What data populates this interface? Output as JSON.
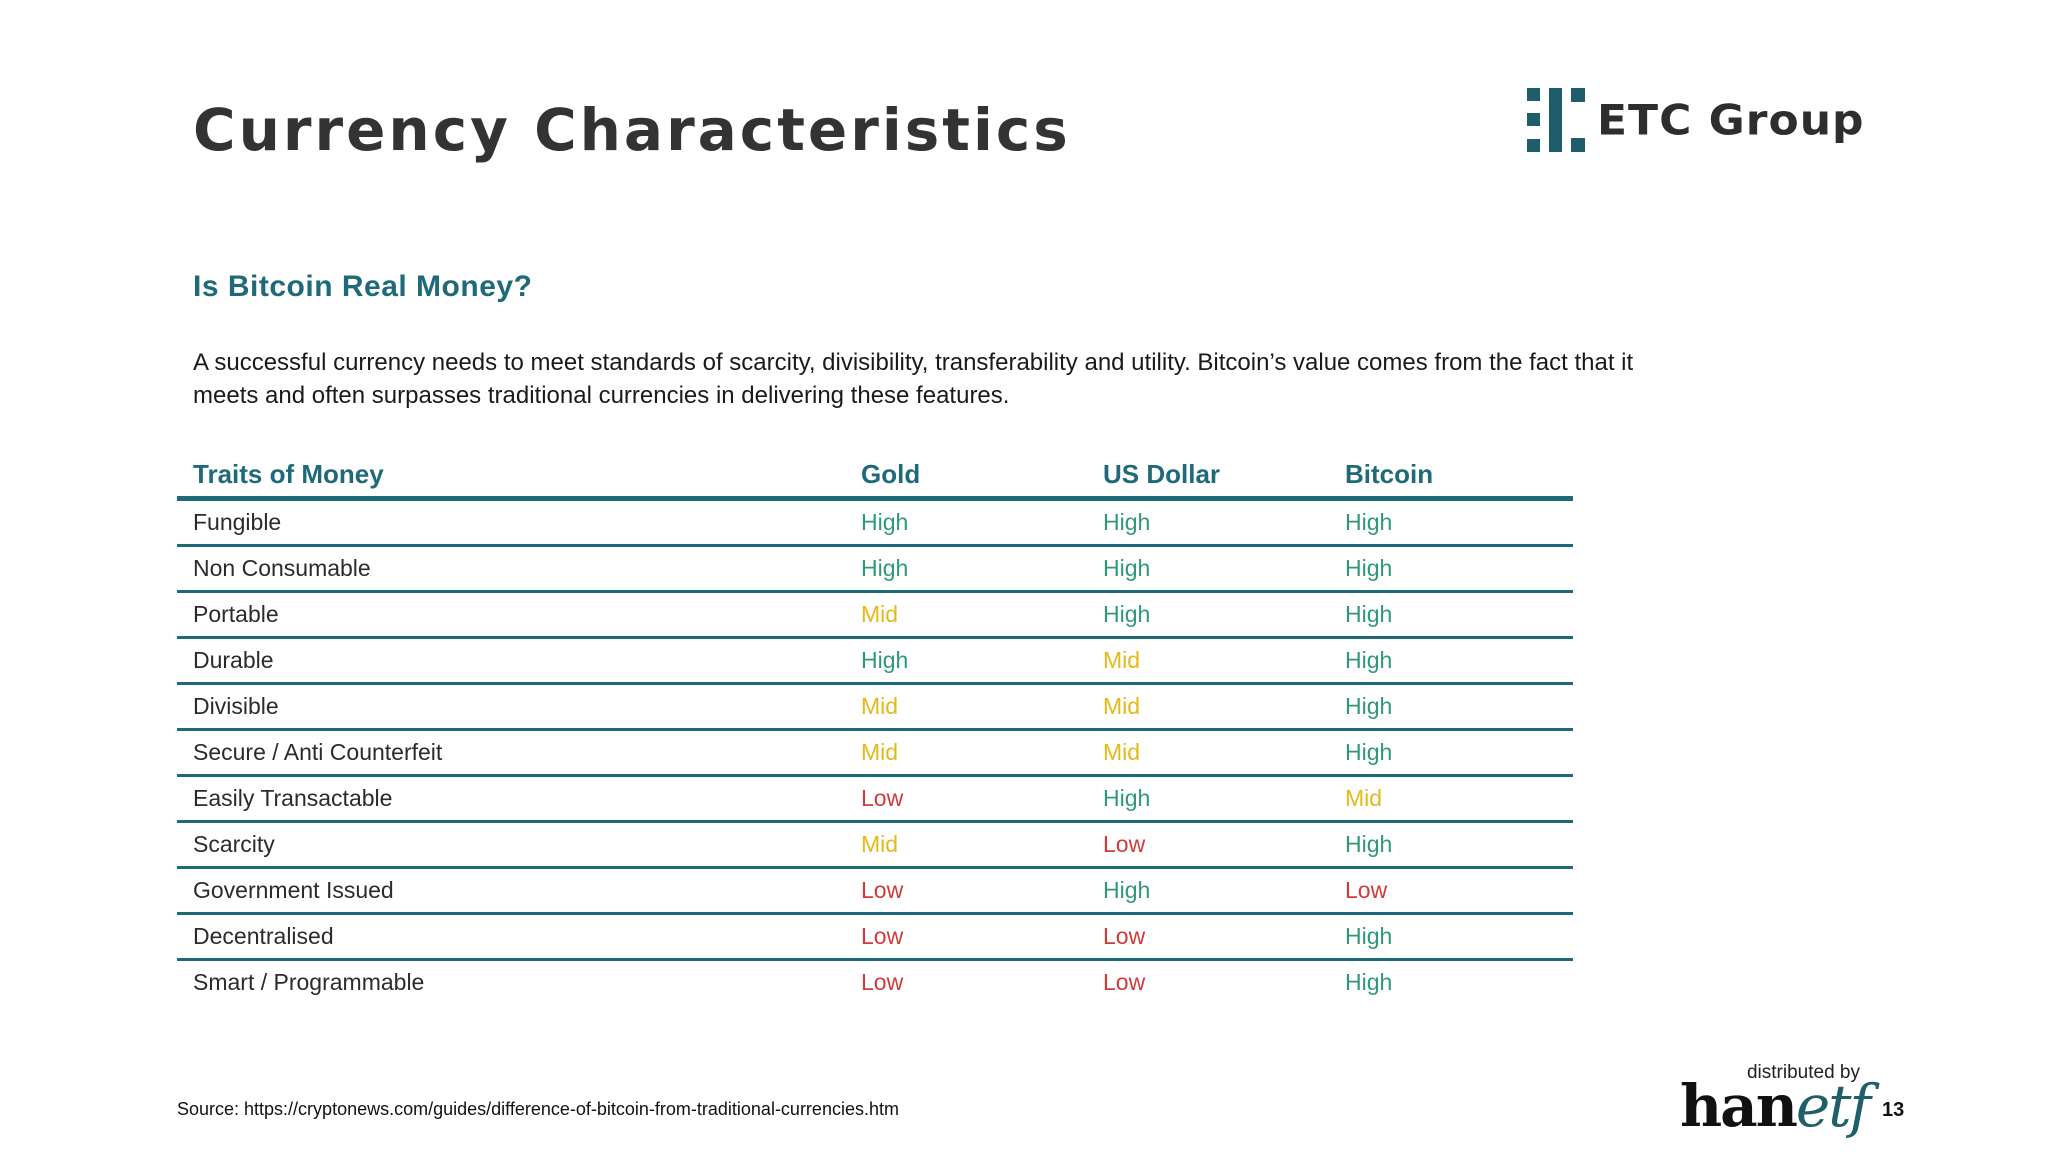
{
  "header": {
    "title": "Currency Characteristics",
    "logo_text": "ETC Group"
  },
  "section": {
    "subtitle": "Is Bitcoin Real Money?",
    "intro": "A successful currency needs to meet standards of scarcity, divisibility, transferability and utility. Bitcoin’s value comes from the fact that it meets and often surpasses traditional currencies in delivering these features."
  },
  "table": {
    "columns": [
      "Traits of Money",
      "Gold",
      "US Dollar",
      "Bitcoin"
    ],
    "rows": [
      {
        "trait": "Fungible",
        "gold": "High",
        "usd": "High",
        "bitcoin": "High"
      },
      {
        "trait": "Non Consumable",
        "gold": "High",
        "usd": "High",
        "bitcoin": "High"
      },
      {
        "trait": "Portable",
        "gold": "Mid",
        "usd": "High",
        "bitcoin": "High"
      },
      {
        "trait": "Durable",
        "gold": "High",
        "usd": "Mid",
        "bitcoin": "High"
      },
      {
        "trait": "Divisible",
        "gold": "Mid",
        "usd": "Mid",
        "bitcoin": "High"
      },
      {
        "trait": "Secure / Anti Counterfeit",
        "gold": "Mid",
        "usd": "Mid",
        "bitcoin": "High"
      },
      {
        "trait": "Easily Transactable",
        "gold": "Low",
        "usd": "High",
        "bitcoin": "Mid"
      },
      {
        "trait": "Scarcity",
        "gold": "Mid",
        "usd": "Low",
        "bitcoin": "High"
      },
      {
        "trait": "Government Issued",
        "gold": "Low",
        "usd": "High",
        "bitcoin": "Low"
      },
      {
        "trait": "Decentralised",
        "gold": "Low",
        "usd": "Low",
        "bitcoin": "High"
      },
      {
        "trait": "Smart / Programmable",
        "gold": "Low",
        "usd": "Low",
        "bitcoin": "High"
      }
    ]
  },
  "footer": {
    "source": "Source: https://cryptonews.com/guides/difference-of-bitcoin-from-traditional-currencies.htm",
    "distributed_by": "distributed by",
    "distributor_han": "han",
    "distributor_etf": "etf",
    "page_number": "13"
  },
  "colors": {
    "accent": "#1e6a79",
    "high": "#2d9a76",
    "mid": "#e6b818",
    "low": "#d23a3a"
  }
}
